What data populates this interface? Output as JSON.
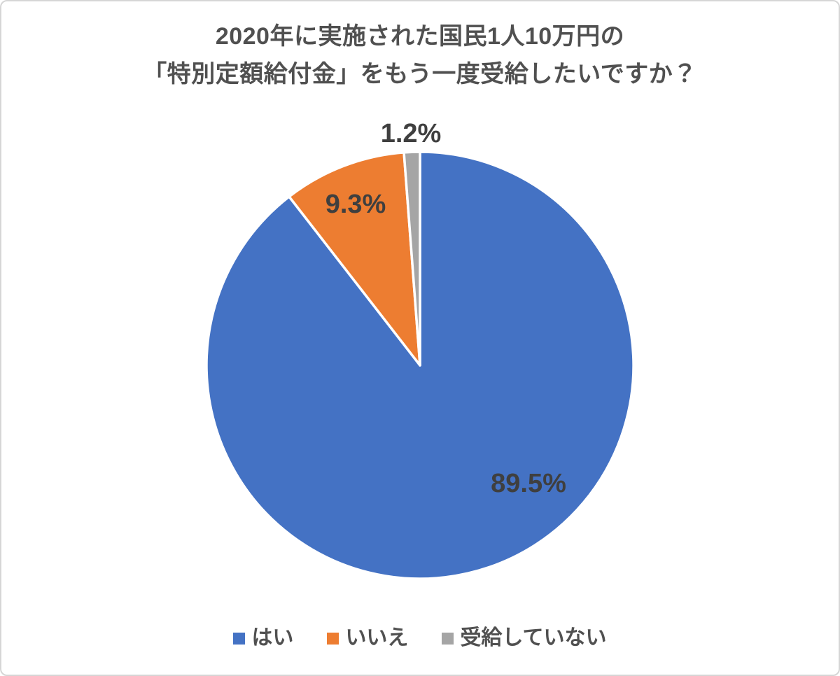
{
  "page": {
    "background": "#ffffff",
    "border_color": "#d6d6d6"
  },
  "chart": {
    "title_line1": "2020年に実施された国民1人10万円の",
    "title_line2": "「特別定額給付金」をもう一度受給したいですか？",
    "title_color": "#505050",
    "data_label_color": "#3f3f3f"
  },
  "chart_data": {
    "type": "pie",
    "title": "2020年に実施された国民1人10万円の「特別定額給付金」をもう一度受給したいですか？",
    "unit": "%",
    "categories": [
      "はい",
      "いいえ",
      "受給していない"
    ],
    "values": [
      89.5,
      9.3,
      1.2
    ],
    "slices": [
      {
        "name": "はい",
        "value": 89.5,
        "label": "89.5%",
        "color": "#4472C4"
      },
      {
        "name": "いいえ",
        "value": 9.3,
        "label": "9.3%",
        "color": "#ED7D31"
      },
      {
        "name": "受給していない",
        "value": 1.2,
        "label": "1.2%",
        "color": "#A5A5A5"
      }
    ],
    "start_angle_deg": 0,
    "direction": "clockwise",
    "legend_position": "bottom"
  }
}
